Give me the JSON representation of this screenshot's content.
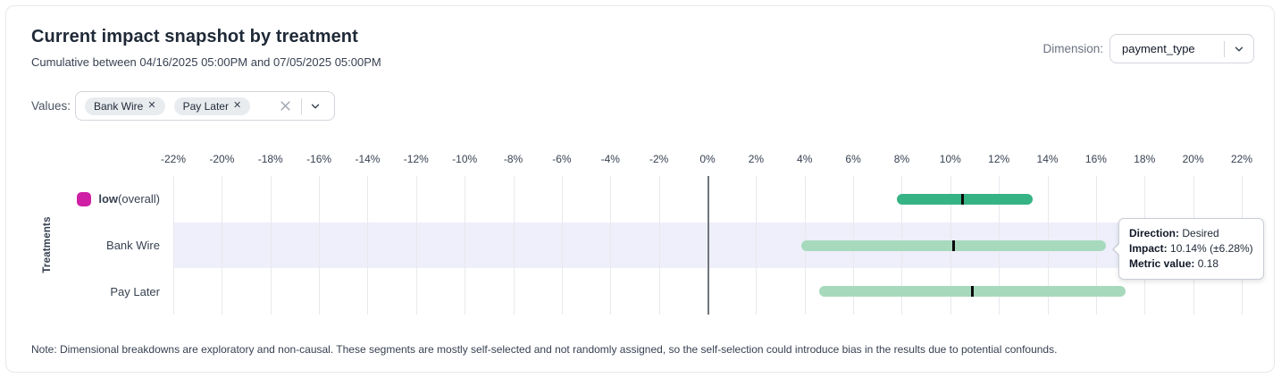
{
  "header": {
    "title": "Current impact snapshot by treatment",
    "subtitle": "Cumulative between 04/16/2025 05:00PM and 07/05/2025 05:00PM",
    "dimension_label": "Dimension:",
    "dimension_value": "payment_type"
  },
  "filters": {
    "values_label": "Values:",
    "chips": [
      {
        "label": "Bank Wire"
      },
      {
        "label": "Pay Later"
      }
    ]
  },
  "chart_data": {
    "type": "bar",
    "orientation": "horizontal",
    "title": "Current impact snapshot by treatment",
    "ylabel": "Treatments",
    "xlabel": "",
    "grid": true,
    "axis": {
      "min": -22,
      "max": 22,
      "step": 2,
      "tick_suffix": "%"
    },
    "rows": [
      {
        "label_bold": "low",
        "label_rest": " (overall)",
        "swatch_color": "#cf1fa5",
        "bar_color": "#35b384",
        "low": 7.8,
        "mid": 10.5,
        "high": 13.4,
        "highlighted": false
      },
      {
        "label": "Bank Wire",
        "bar_color": "#a7d9bd",
        "low": 3.86,
        "mid": 10.14,
        "high": 16.42,
        "highlighted": true
      },
      {
        "label": "Pay Later",
        "bar_color": "#a7d9bd",
        "low": 4.6,
        "mid": 10.9,
        "high": 17.2,
        "highlighted": false
      }
    ]
  },
  "tooltip": {
    "direction_label": "Direction:",
    "direction_value": "Desired",
    "impact_label": "Impact:",
    "impact_value": "10.14% (±6.28%)",
    "metric_label": "Metric value:",
    "metric_value": "0.18"
  },
  "note": "Note: Dimensional breakdowns are exploratory and non-causal. These segments are mostly self-selected and not randomly assigned, so the self-selection could introduce bias in the results due to potential confounds.",
  "colors": {
    "accent_magenta": "#cf1fa5",
    "bar_dark_green": "#35b384",
    "bar_light_green": "#a7d9bd",
    "row_highlight": "#eeeffa",
    "zero_line": "#71757d"
  }
}
